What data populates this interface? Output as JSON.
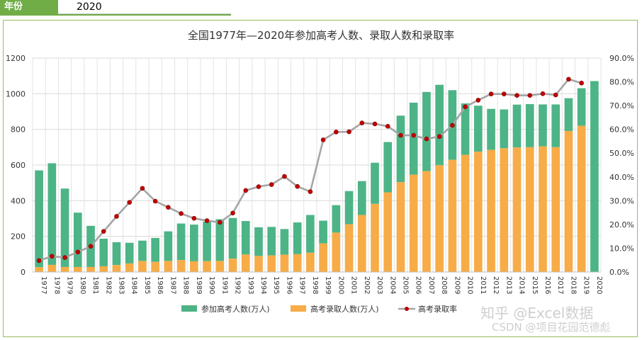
{
  "header": {
    "year_label": "年份",
    "year_value": "2020"
  },
  "watermark": {
    "line1": "知乎 @Excel数据",
    "line2": "CSDN @项目花园范德彪"
  },
  "colors": {
    "applicants": "#4db487",
    "admitted": "#f7ac47",
    "rate_line": "#a5a5a5",
    "rate_marker": "#c00000"
  },
  "chart_data": {
    "type": "bar",
    "title": "全国1977年—2020年参加高考人数、录取人数和录取率",
    "ylim": [
      0,
      1200
    ],
    "y_ticks": [
      "0",
      "200",
      "400",
      "600",
      "800",
      "1000",
      "1200"
    ],
    "y2lim": [
      0,
      90
    ],
    "y2_ticks": [
      "0.0%",
      "10.0%",
      "20.0%",
      "30.0%",
      "40.0%",
      "50.0%",
      "60.0%",
      "70.0%",
      "80.0%",
      "90.0%"
    ],
    "categories": [
      "1977",
      "1978",
      "1979",
      "1980",
      "1981",
      "1982",
      "1983",
      "1984",
      "1985",
      "1986",
      "1987",
      "1988",
      "1989",
      "1990",
      "1991",
      "1992",
      "1993",
      "1994",
      "1995",
      "1996",
      "1997",
      "1998",
      "1999",
      "2000",
      "2001",
      "2002",
      "2003",
      "2004",
      "2005",
      "2006",
      "2007",
      "2008",
      "2009",
      "2010",
      "2011",
      "2012",
      "2013",
      "2014",
      "2015",
      "2016",
      "2017",
      "2018",
      "2019",
      "2020"
    ],
    "series": [
      {
        "name": "参加高考人数(万人)",
        "type": "bar",
        "values": [
          570,
          610,
          468,
          333,
          259,
          187,
          167,
          164,
          176,
          191,
          228,
          272,
          266,
          283,
          296,
          303,
          286,
          251,
          253,
          241,
          278,
          320,
          288,
          375,
          454,
          510,
          613,
          729,
          877,
          950,
          1010,
          1050,
          1020,
          946,
          933,
          915,
          912,
          939,
          942,
          940,
          940,
          975,
          1031,
          1071
        ]
      },
      {
        "name": "高考录取人数(万人)",
        "type": "bar",
        "values": [
          27,
          40,
          28,
          28,
          28,
          32,
          39,
          48,
          62,
          57,
          62,
          67,
          60,
          61,
          62,
          75,
          98,
          90,
          93,
          97,
          100,
          108,
          160,
          221,
          268,
          320,
          382,
          447,
          504,
          546,
          566,
          599,
          629,
          657,
          675,
          685,
          694,
          698,
          700,
          705,
          700,
          791,
          820,
          0
        ]
      },
      {
        "name": "高考录取率",
        "type": "line",
        "unit": "%",
        "values": [
          4.8,
          6.6,
          6.1,
          8.4,
          10.8,
          17.1,
          23.4,
          29.3,
          35.2,
          29.8,
          27.2,
          24.6,
          22.6,
          21.6,
          20.9,
          24.8,
          34.3,
          35.9,
          36.8,
          40.2,
          36.0,
          33.8,
          55.6,
          58.9,
          59.0,
          62.7,
          62.3,
          61.3,
          57.5,
          57.5,
          56.0,
          57.0,
          61.7,
          69.5,
          72.3,
          74.9,
          74.9,
          74.3,
          74.3,
          75.0,
          74.5,
          81.1,
          79.5,
          null
        ]
      }
    ]
  }
}
